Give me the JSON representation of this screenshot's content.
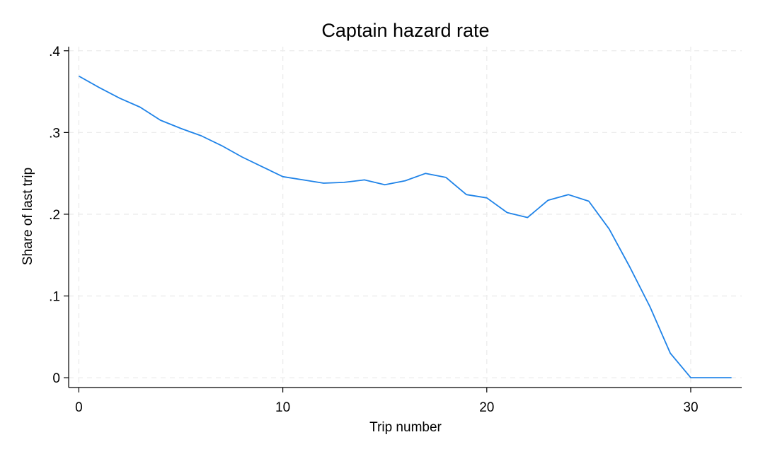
{
  "chart_data": {
    "type": "line",
    "title": "Captain hazard rate",
    "xlabel": "Trip number",
    "ylabel": "Share of last trip",
    "xlim": [
      -0.5,
      32.5
    ],
    "ylim": [
      -0.012,
      0.405
    ],
    "xticks": [
      0,
      10,
      20,
      30
    ],
    "xtick_labels": [
      "0",
      "10",
      "20",
      "30"
    ],
    "yticks": [
      0,
      0.1,
      0.2,
      0.3,
      0.4
    ],
    "ytick_labels": [
      "0",
      ".1",
      ".2",
      ".3",
      ".4"
    ],
    "grid": true,
    "series": [
      {
        "color": "#1f83e8",
        "x": [
          0,
          1,
          2,
          3,
          4,
          5,
          6,
          7,
          8,
          9,
          10,
          11,
          12,
          13,
          14,
          15,
          16,
          17,
          18,
          19,
          20,
          21,
          22,
          23,
          24,
          25,
          26,
          27,
          28,
          29,
          30,
          31,
          32
        ],
        "y": [
          0.369,
          0.355,
          0.342,
          0.331,
          0.315,
          0.305,
          0.296,
          0.284,
          0.27,
          0.258,
          0.246,
          0.242,
          0.238,
          0.239,
          0.242,
          0.236,
          0.241,
          0.25,
          0.245,
          0.224,
          0.22,
          0.202,
          0.196,
          0.217,
          0.224,
          0.216,
          0.182,
          0.136,
          0.087,
          0.03,
          0.0,
          0.0,
          0.0
        ]
      }
    ]
  }
}
